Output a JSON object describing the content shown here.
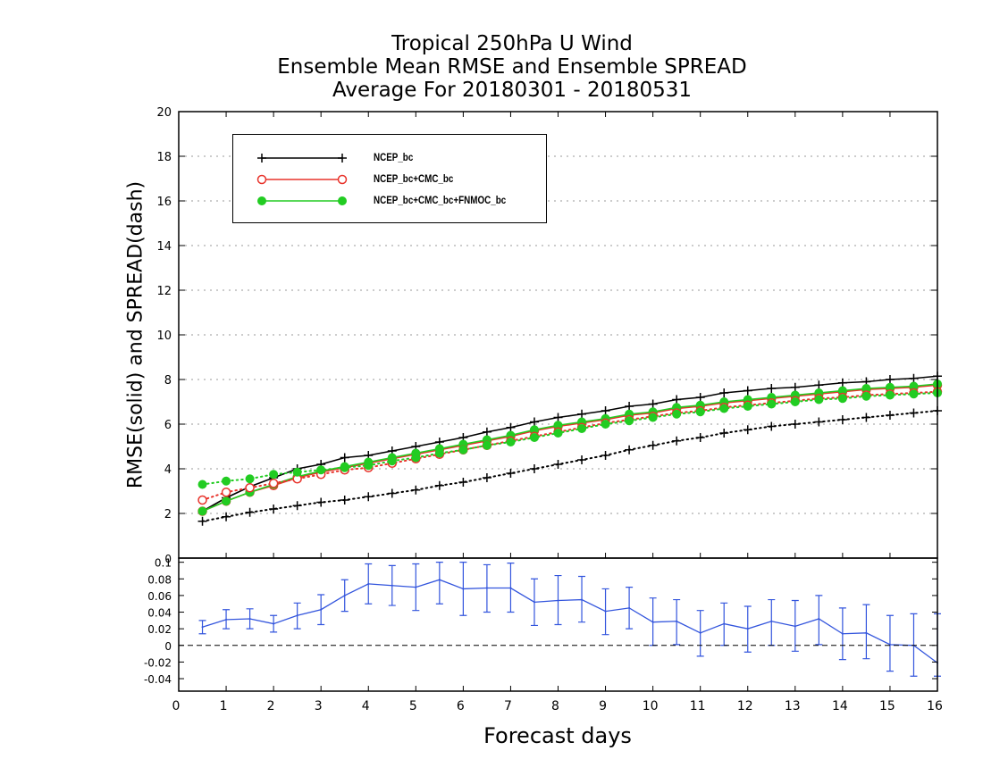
{
  "title": {
    "line1": "Tropical 250hPa U Wind",
    "line2": "Ensemble Mean RMSE and Ensemble SPREAD",
    "line3": "Average For 20180301 - 20180531"
  },
  "chart_data": [
    {
      "type": "line",
      "panel": "top",
      "ylabel": "RMSE(solid) and SPREAD(dash)",
      "xlim": [
        0,
        16
      ],
      "ylim": [
        0,
        20
      ],
      "y_ticks": [
        0,
        2,
        4,
        6,
        8,
        10,
        12,
        14,
        16,
        18,
        20
      ],
      "grid": true,
      "legend_position": "top-left",
      "x": [
        0.5,
        1,
        1.5,
        2,
        2.5,
        3,
        3.5,
        4,
        4.5,
        5,
        5.5,
        6,
        6.5,
        7,
        7.5,
        8,
        8.5,
        9,
        9.5,
        10,
        10.5,
        11,
        11.5,
        12,
        12.5,
        13,
        13.5,
        14,
        14.5,
        15,
        15.5,
        16
      ],
      "series": [
        {
          "name": "NCEP_bc",
          "style": "solid",
          "marker": "plus",
          "color": "#000000",
          "values": [
            2.1,
            2.7,
            3.2,
            3.6,
            4.0,
            4.2,
            4.5,
            4.6,
            4.8,
            5.0,
            5.2,
            5.4,
            5.65,
            5.85,
            6.1,
            6.3,
            6.45,
            6.6,
            6.8,
            6.9,
            7.1,
            7.2,
            7.4,
            7.5,
            7.6,
            7.65,
            7.75,
            7.85,
            7.9,
            8.0,
            8.05,
            8.15
          ]
        },
        {
          "name": "NCEP_bc+CMC_bc",
          "style": "solid",
          "marker": "open-circle",
          "color": "#e8332b",
          "values": [
            2.1,
            2.55,
            2.95,
            3.25,
            3.6,
            3.85,
            4.05,
            4.25,
            4.45,
            4.65,
            4.85,
            5.05,
            5.25,
            5.45,
            5.7,
            5.9,
            6.05,
            6.2,
            6.4,
            6.5,
            6.7,
            6.8,
            6.95,
            7.05,
            7.15,
            7.25,
            7.35,
            7.45,
            7.55,
            7.6,
            7.65,
            7.75
          ]
        },
        {
          "name": "NCEP_bc+CMC_bc+FNMOC_bc",
          "style": "solid",
          "marker": "filled-circle",
          "color": "#22cc22",
          "values": [
            2.1,
            2.55,
            2.95,
            3.3,
            3.65,
            3.9,
            4.1,
            4.3,
            4.5,
            4.7,
            4.9,
            5.1,
            5.3,
            5.5,
            5.75,
            5.95,
            6.1,
            6.25,
            6.45,
            6.55,
            6.75,
            6.85,
            7.0,
            7.1,
            7.2,
            7.3,
            7.4,
            7.5,
            7.6,
            7.65,
            7.7,
            7.8
          ]
        },
        {
          "name": "NCEP_bc spread",
          "style": "dotted",
          "marker": "plus",
          "color": "#000000",
          "values": [
            1.65,
            1.85,
            2.05,
            2.2,
            2.35,
            2.5,
            2.6,
            2.75,
            2.9,
            3.05,
            3.25,
            3.4,
            3.6,
            3.8,
            4.0,
            4.2,
            4.4,
            4.6,
            4.85,
            5.05,
            5.25,
            5.4,
            5.6,
            5.75,
            5.9,
            6.0,
            6.1,
            6.2,
            6.3,
            6.4,
            6.5,
            6.6
          ]
        },
        {
          "name": "NCEP_bc+CMC_bc spread",
          "style": "dotted",
          "marker": "open-circle",
          "color": "#e8332b",
          "values": [
            2.6,
            2.95,
            3.15,
            3.35,
            3.55,
            3.75,
            3.95,
            4.05,
            4.25,
            4.45,
            4.65,
            4.85,
            5.05,
            5.25,
            5.45,
            5.65,
            5.85,
            6.05,
            6.2,
            6.35,
            6.5,
            6.6,
            6.75,
            6.85,
            6.95,
            7.05,
            7.15,
            7.2,
            7.3,
            7.35,
            7.4,
            7.45
          ]
        },
        {
          "name": "NCEP_bc+CMC_bc+FNMOC_bc spread",
          "style": "dotted",
          "marker": "filled-circle",
          "color": "#22cc22",
          "values": [
            3.3,
            3.45,
            3.55,
            3.75,
            3.85,
            3.95,
            4.05,
            4.15,
            4.35,
            4.5,
            4.7,
            4.85,
            5.05,
            5.2,
            5.4,
            5.6,
            5.8,
            6.0,
            6.15,
            6.3,
            6.45,
            6.55,
            6.7,
            6.8,
            6.9,
            7.0,
            7.1,
            7.15,
            7.25,
            7.3,
            7.35,
            7.4
          ]
        }
      ],
      "legend": [
        {
          "label": "NCEP_bc",
          "marker": "plus",
          "color": "#000000"
        },
        {
          "label": "NCEP_bc+CMC_bc",
          "marker": "open-circle",
          "color": "#e8332b"
        },
        {
          "label": "NCEP_bc+CMC_bc+FNMOC_bc",
          "marker": "filled-circle",
          "color": "#22cc22"
        }
      ]
    },
    {
      "type": "line",
      "panel": "bottom",
      "xlabel": "Forecast days",
      "xlim": [
        0,
        16
      ],
      "x_ticks": [
        0,
        1,
        2,
        3,
        4,
        5,
        6,
        7,
        8,
        9,
        10,
        11,
        12,
        13,
        14,
        15,
        16
      ],
      "ylim": [
        -0.055,
        0.105
      ],
      "y_ticks": [
        -0.04,
        -0.02,
        0,
        0.02,
        0.04,
        0.06,
        0.08,
        0.1
      ],
      "y_tick_labels": [
        "-0.04",
        "-0.02",
        "0",
        "0.02",
        "0.04",
        "0.06",
        "0.08",
        "0.1"
      ],
      "top_tick_label": "0",
      "zero_line": "dashed",
      "color": "#3355dd",
      "x": [
        0.5,
        1,
        1.5,
        2,
        2.5,
        3,
        3.5,
        4,
        4.5,
        5,
        5.5,
        6,
        6.5,
        7,
        7.5,
        8,
        8.5,
        9,
        9.5,
        10,
        10.5,
        11,
        11.5,
        12,
        12.5,
        13,
        13.5,
        14,
        14.5,
        15,
        15.5,
        16
      ],
      "values": [
        0.022,
        0.031,
        0.032,
        0.026,
        0.036,
        0.043,
        0.06,
        0.074,
        0.072,
        0.07,
        0.079,
        0.068,
        0.069,
        0.069,
        0.052,
        0.054,
        0.055,
        0.041,
        0.045,
        0.028,
        0.029,
        0.015,
        0.026,
        0.02,
        0.029,
        0.023,
        0.032,
        0.014,
        0.015,
        0.001,
        0.0,
        -0.021
      ],
      "error_low": [
        0.014,
        0.02,
        0.02,
        0.016,
        0.02,
        0.025,
        0.041,
        0.05,
        0.048,
        0.042,
        0.05,
        0.036,
        0.04,
        0.04,
        0.024,
        0.025,
        0.028,
        0.013,
        0.02,
        0.0,
        0.001,
        -0.013,
        0.0,
        -0.008,
        0.0,
        -0.007,
        0.001,
        -0.017,
        -0.016,
        -0.031,
        -0.037,
        -0.037
      ],
      "error_high": [
        0.03,
        0.043,
        0.044,
        0.036,
        0.051,
        0.061,
        0.079,
        0.098,
        0.096,
        0.098,
        0.1,
        0.1,
        0.097,
        0.099,
        0.08,
        0.084,
        0.083,
        0.068,
        0.07,
        0.057,
        0.055,
        0.042,
        0.051,
        0.047,
        0.055,
        0.054,
        0.06,
        0.045,
        0.049,
        0.036,
        0.038,
        0.038
      ]
    }
  ]
}
